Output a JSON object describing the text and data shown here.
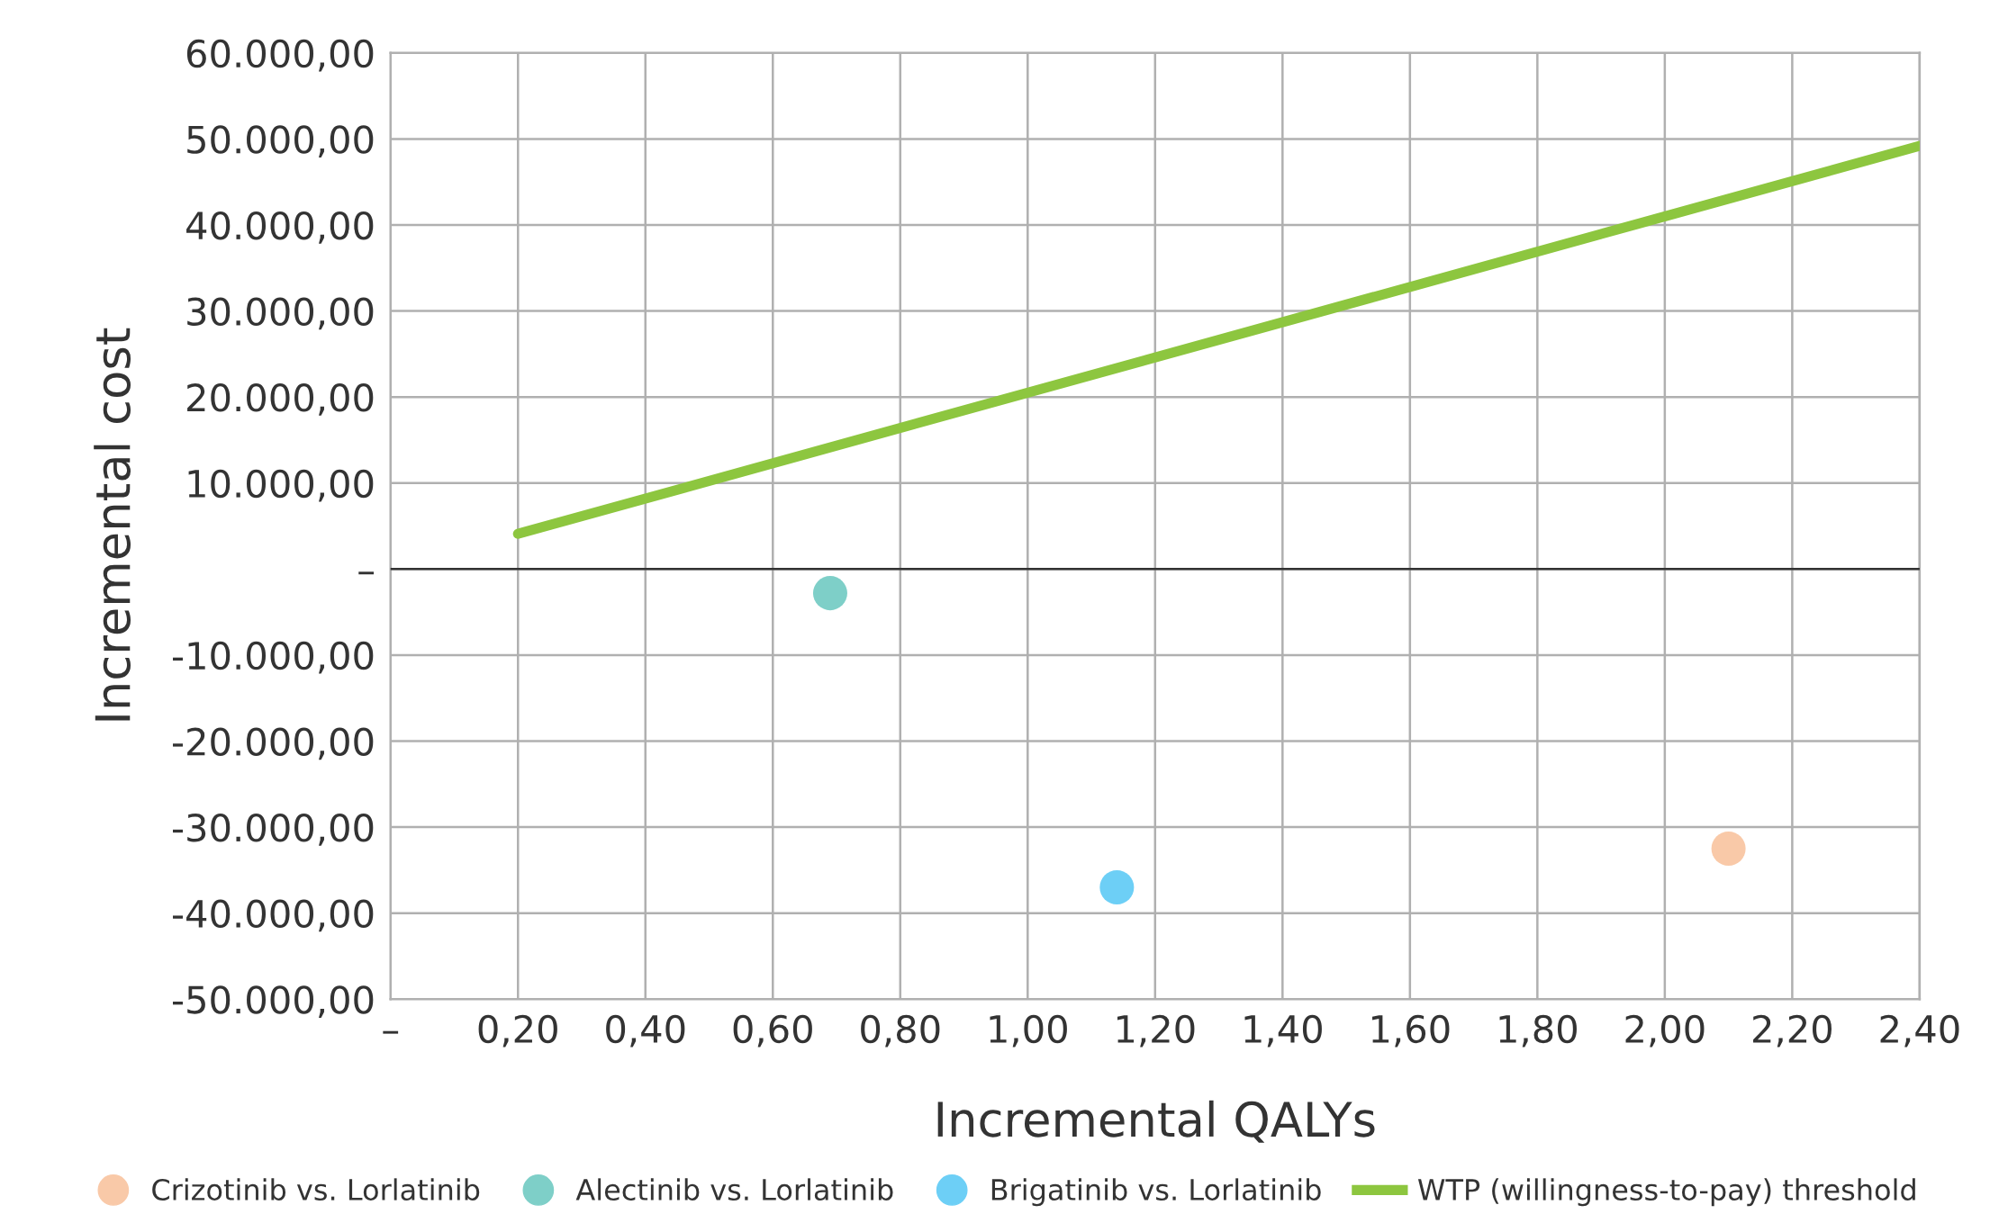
{
  "chart_data": {
    "type": "scatter",
    "xlabel": "Incremental QALYs",
    "ylabel": "Incremental cost",
    "xlim": [
      0,
      2.4
    ],
    "xticks": [
      {
        "value": 0,
        "label": "–"
      },
      {
        "value": 0.2,
        "label": "0,20"
      },
      {
        "value": 0.4,
        "label": "0,40"
      },
      {
        "value": 0.6,
        "label": "0,60"
      },
      {
        "value": 0.8,
        "label": "0,80"
      },
      {
        "value": 1.0,
        "label": "1,00"
      },
      {
        "value": 1.2,
        "label": "1,20"
      },
      {
        "value": 1.4,
        "label": "1,40"
      },
      {
        "value": 1.6,
        "label": "1,60"
      },
      {
        "value": 1.8,
        "label": "1,80"
      },
      {
        "value": 2.0,
        "label": "2,00"
      },
      {
        "value": 2.2,
        "label": "2,20"
      },
      {
        "value": 2.4,
        "label": "2,40"
      }
    ],
    "ylim": [
      -50000,
      60000
    ],
    "yticks": [
      {
        "value": -50000,
        "label": "-50.000,00"
      },
      {
        "value": -40000,
        "label": "-40.000,00"
      },
      {
        "value": -30000,
        "label": "-30.000,00"
      },
      {
        "value": -20000,
        "label": "-20.000,00"
      },
      {
        "value": -10000,
        "label": "-10.000,00"
      },
      {
        "value": 0,
        "label": "–"
      },
      {
        "value": 10000,
        "label": "10.000,00"
      },
      {
        "value": 20000,
        "label": "20.000,00"
      },
      {
        "value": 30000,
        "label": "30.000,00"
      },
      {
        "value": 40000,
        "label": "40.000,00"
      },
      {
        "value": 50000,
        "label": "50.000,00"
      },
      {
        "value": 60000,
        "label": "60.000,00"
      }
    ],
    "grid": true,
    "legend": "bottom",
    "marker": "circle",
    "ref_lines": [
      {
        "axis": "y",
        "value": 0,
        "color": "#333333"
      }
    ],
    "series": [
      {
        "name": "Crizotinib vs. Lorlatinib",
        "color": "#f9c9a8",
        "x": [
          2.1
        ],
        "values": [
          -32500
        ]
      },
      {
        "name": "Alectinib vs. Lorlatinib",
        "color": "#7ecfc8",
        "x": [
          0.69
        ],
        "values": [
          -2800
        ]
      },
      {
        "name": "Brigatinib vs. Lorlatinib",
        "color": "#6dcff6",
        "x": [
          1.14
        ],
        "values": [
          -37000
        ]
      },
      {
        "name": "WTP (willingness-to-pay) threshold",
        "color": "#8dc63f",
        "type": "line",
        "marker": "none",
        "x": [
          0.2,
          2.4
        ],
        "values": [
          4100,
          49200
        ]
      }
    ]
  }
}
